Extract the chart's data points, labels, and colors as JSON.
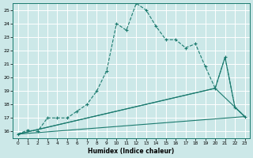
{
  "xlabel": "Humidex (Indice chaleur)",
  "background_color": "#cce8e8",
  "grid_color": "#ffffff",
  "line_color": "#1a7a6e",
  "xlim": [
    -0.5,
    23.5
  ],
  "ylim": [
    15.5,
    25.5
  ],
  "yticks": [
    16,
    17,
    18,
    19,
    20,
    21,
    22,
    23,
    24,
    25
  ],
  "xticks": [
    0,
    1,
    2,
    3,
    4,
    5,
    6,
    7,
    8,
    9,
    10,
    11,
    12,
    13,
    14,
    15,
    16,
    17,
    18,
    19,
    20,
    21,
    22,
    23
  ],
  "dashed_line": {
    "x": [
      0,
      1,
      2,
      3,
      4,
      5,
      6,
      7,
      8,
      9,
      10,
      11,
      12,
      13,
      14,
      15,
      16,
      17,
      18,
      19,
      20,
      21,
      22,
      23
    ],
    "y": [
      15.8,
      16.1,
      16.0,
      17.0,
      17.0,
      17.0,
      17.5,
      18.0,
      19.0,
      20.5,
      24.0,
      23.5,
      25.5,
      25.0,
      23.8,
      22.8,
      22.8,
      22.2,
      22.5,
      20.8,
      19.2,
      21.5,
      17.8,
      17.1
    ],
    "marker": "+",
    "linestyle": "--",
    "linewidth": 0.8,
    "markersize": 3
  },
  "solid_lines": [
    {
      "x": [
        0,
        23
      ],
      "y": [
        15.8,
        17.1
      ],
      "linewidth": 0.8
    },
    {
      "x": [
        0,
        20,
        22,
        23
      ],
      "y": [
        15.8,
        19.2,
        17.8,
        17.1
      ],
      "linewidth": 0.8
    },
    {
      "x": [
        0,
        20,
        21,
        22,
        23
      ],
      "y": [
        15.8,
        19.2,
        21.5,
        17.8,
        17.1
      ],
      "linewidth": 0.8
    }
  ]
}
